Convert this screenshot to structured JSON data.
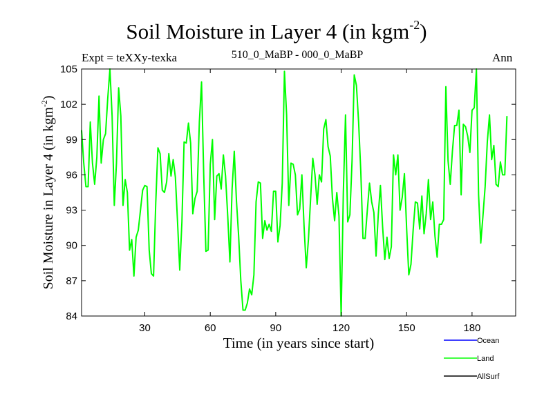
{
  "chart_data": {
    "type": "line",
    "title": "Soil Moisture in Layer 4 (in kgm",
    "title_sup": "-2",
    "title_close": ")",
    "subtitle_left": "Expt = teXXy-texka",
    "subtitle_center": "510_0_MaBP - 000_0_MaBP",
    "subtitle_right": "Ann",
    "xlabel": "Time (in years since start)",
    "ylabel": "Soil Moisture in Layer 4 (in kgm",
    "ylabel_sup": "-2",
    "ylabel_close": ")",
    "xlim": [
      1,
      200
    ],
    "ylim": [
      84,
      105
    ],
    "xticks": [
      30,
      60,
      90,
      120,
      150,
      180
    ],
    "yticks": [
      84,
      87,
      90,
      93,
      96,
      99,
      102,
      105
    ],
    "grid": false,
    "legend_position": "bottom-right",
    "series": [
      {
        "name": "Ocean",
        "color": "#0000ff",
        "values": []
      },
      {
        "name": "Land",
        "color": "#00ff00",
        "values": [
          99.8,
          97.0,
          95.0,
          95.0,
          100.5,
          97.0,
          95.2,
          97.5,
          102.7,
          97.0,
          99.0,
          99.5,
          102.5,
          105.0,
          101.0,
          93.4,
          97.0,
          103.4,
          101.0,
          93.4,
          95.6,
          94.5,
          89.6,
          90.5,
          87.4,
          90.7,
          91.3,
          93.0,
          94.7,
          95.1,
          95.0,
          89.6,
          87.6,
          87.4,
          93.6,
          98.3,
          97.8,
          94.7,
          94.5,
          95.4,
          97.8,
          95.9,
          97.3,
          95.8,
          92.0,
          87.9,
          92.0,
          98.8,
          98.7,
          100.4,
          98.7,
          92.7,
          94.0,
          94.6,
          100.5,
          103.9,
          96.0,
          89.5,
          89.6,
          96.9,
          99.0,
          92.2,
          95.9,
          96.1,
          94.8,
          97.7,
          95.9,
          92.5,
          88.6,
          94.8,
          98.0,
          93.8,
          90.8,
          87.0,
          84.5,
          84.5,
          85.1,
          86.3,
          85.8,
          87.5,
          93.7,
          95.4,
          95.3,
          90.6,
          92.1,
          91.3,
          91.8,
          91.2,
          94.6,
          94.6,
          90.3,
          91.7,
          95.3,
          104.8,
          101.1,
          93.4,
          97.0,
          96.9,
          96.0,
          92.6,
          93.1,
          96.0,
          91.6,
          88.1,
          90.5,
          94.0,
          97.4,
          96.0,
          93.5,
          96.0,
          95.4,
          99.9,
          100.7,
          98.4,
          97.6,
          94.0,
          92.1,
          94.5,
          92.5,
          84.0,
          94.5,
          101.1,
          92.0,
          92.6,
          97.2,
          104.5,
          103.6,
          100.5,
          96.3,
          90.6,
          90.6,
          93.0,
          95.3,
          93.7,
          92.8,
          89.1,
          92.6,
          95.1,
          91.6,
          88.8,
          90.7,
          88.9,
          89.9,
          97.7,
          96.0,
          97.7,
          93.0,
          94.1,
          96.1,
          91.5,
          87.5,
          88.4,
          91.3,
          93.7,
          93.6,
          91.4,
          94.2,
          91.0,
          92.7,
          95.6,
          92.2,
          93.7,
          90.8,
          89.0,
          91.8,
          91.8,
          92.2,
          103.5,
          97.2,
          95.2,
          98.0,
          100.2,
          100.2,
          101.5,
          94.3,
          100.3,
          100.1,
          99.3,
          97.9,
          101.5,
          101.7,
          105.0,
          94.3,
          90.2,
          92.5,
          95.0,
          98.8,
          101.1,
          97.3,
          98.5,
          95.2,
          95.0,
          97.1,
          96.0,
          96.0,
          101.0
        ]
      },
      {
        "name": "AllSurf",
        "color": "#000000",
        "values": []
      }
    ]
  }
}
